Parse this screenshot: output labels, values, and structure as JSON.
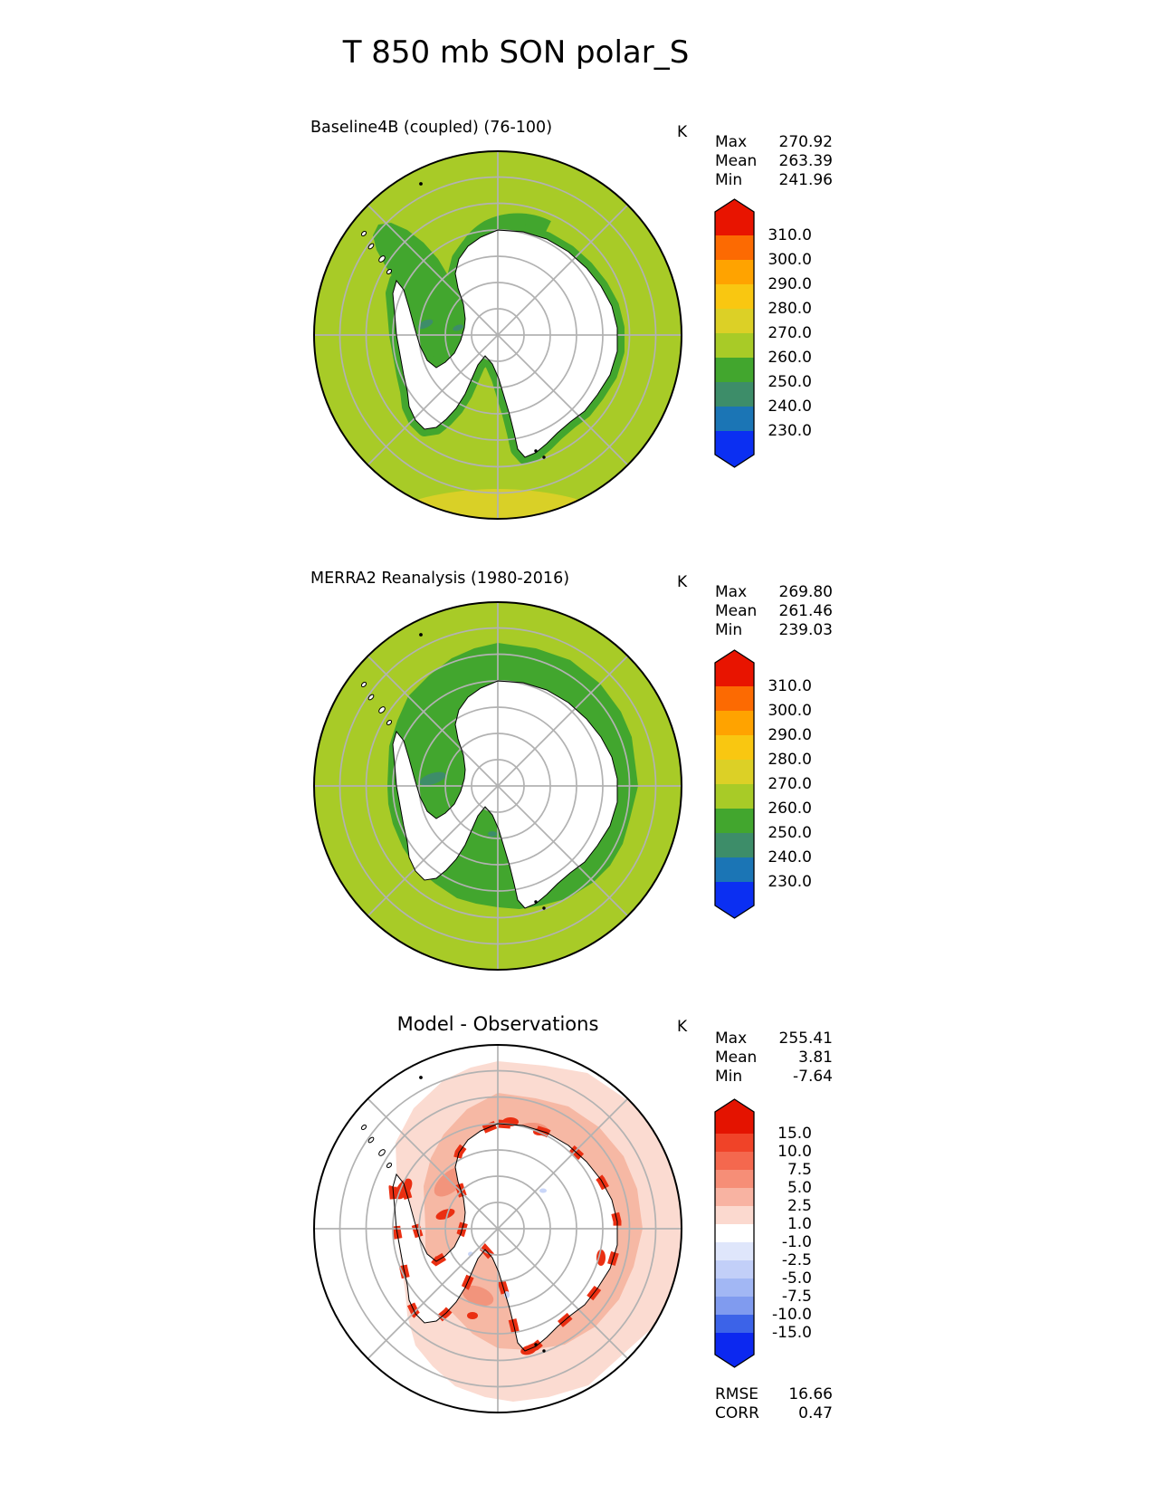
{
  "figure_title": "T 850 mb SON polar_S",
  "chart_data": {
    "type": "heatmap",
    "projection": "south polar stereographic",
    "variable": "T 850 mb",
    "season": "SON",
    "region": "polar_S",
    "unit": "K",
    "panels": [
      {
        "title": "Baseline4B (coupled) (76-100)",
        "unit": "K",
        "stats": [
          {
            "label": "Max",
            "value": "270.92"
          },
          {
            "label": "Mean",
            "value": "263.39"
          },
          {
            "label": "Min",
            "value": "241.96"
          }
        ],
        "colorbar": {
          "tick_labels": [
            "310.0",
            "300.0",
            "290.0",
            "280.0",
            "270.0",
            "260.0",
            "250.0",
            "240.0",
            "230.0"
          ],
          "colors": [
            "#e81400",
            "#fc6a02",
            "#ffa300",
            "#f9c711",
            "#dcd026",
            "#a8cb27",
            "#42a62e",
            "#3d8d69",
            "#1b75b5",
            "#0b2ff2"
          ]
        }
      },
      {
        "title": "MERRA2 Reanalysis (1980-2016)",
        "unit": "K",
        "stats": [
          {
            "label": "Max",
            "value": "269.80"
          },
          {
            "label": "Mean",
            "value": "261.46"
          },
          {
            "label": "Min",
            "value": "239.03"
          }
        ],
        "colorbar": {
          "tick_labels": [
            "310.0",
            "300.0",
            "290.0",
            "280.0",
            "270.0",
            "260.0",
            "250.0",
            "240.0",
            "230.0"
          ],
          "colors": [
            "#e81400",
            "#fc6a02",
            "#ffa300",
            "#f9c711",
            "#dcd026",
            "#a8cb27",
            "#42a62e",
            "#3d8d69",
            "#1b75b5",
            "#0b2ff2"
          ]
        }
      },
      {
        "title": "Model - Observations",
        "unit": "K",
        "stats": [
          {
            "label": "Max",
            "value": "255.41"
          },
          {
            "label": "Mean",
            "value": "3.81"
          },
          {
            "label": "Min",
            "value": "-7.64"
          }
        ],
        "colorbar": {
          "tick_labels": [
            "15.0",
            "10.0",
            "7.5",
            "5.0",
            "2.5",
            "1.0",
            "-1.0",
            "-2.5",
            "-5.0",
            "-7.5",
            "-10.0",
            "-15.0"
          ],
          "colors": [
            "#e41300",
            "#f04328",
            "#f4684e",
            "#f68e77",
            "#f8b3a2",
            "#fbd9cf",
            "#ffffff",
            "#dfe6fb",
            "#c2cff8",
            "#a2b7f4",
            "#809bef",
            "#3c63e8",
            "#0c28f0"
          ]
        },
        "metrics": [
          {
            "label": "RMSE",
            "value": "16.66"
          },
          {
            "label": "CORR",
            "value": "0.47"
          }
        ]
      }
    ],
    "map_colors": {
      "ocean_temp": "#a8cb27",
      "coastal_band": "#42a62e",
      "cold_patch": "#3d8d69",
      "warm_band": "#d9d027",
      "diff_light_pink": "#fbdbd1",
      "diff_mid_pink": "#f6b8a4",
      "diff_deep_pink": "#f2947c",
      "diff_red": "#ea2f12",
      "diff_blue_speck": "#c9d6f8",
      "continent": "#ffffff",
      "graticule": "#b2b2b2",
      "coastline": "#000000"
    }
  }
}
